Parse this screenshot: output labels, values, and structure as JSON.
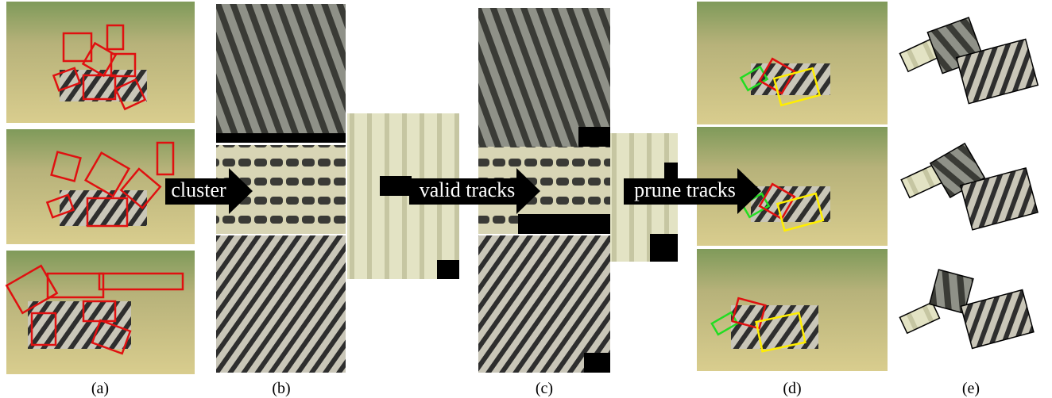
{
  "figure": {
    "arrows": [
      "cluster",
      "valid tracks",
      "prune tracks"
    ],
    "panels": [
      "(a)",
      "(b)",
      "(c)",
      "(d)",
      "(e)"
    ]
  }
}
